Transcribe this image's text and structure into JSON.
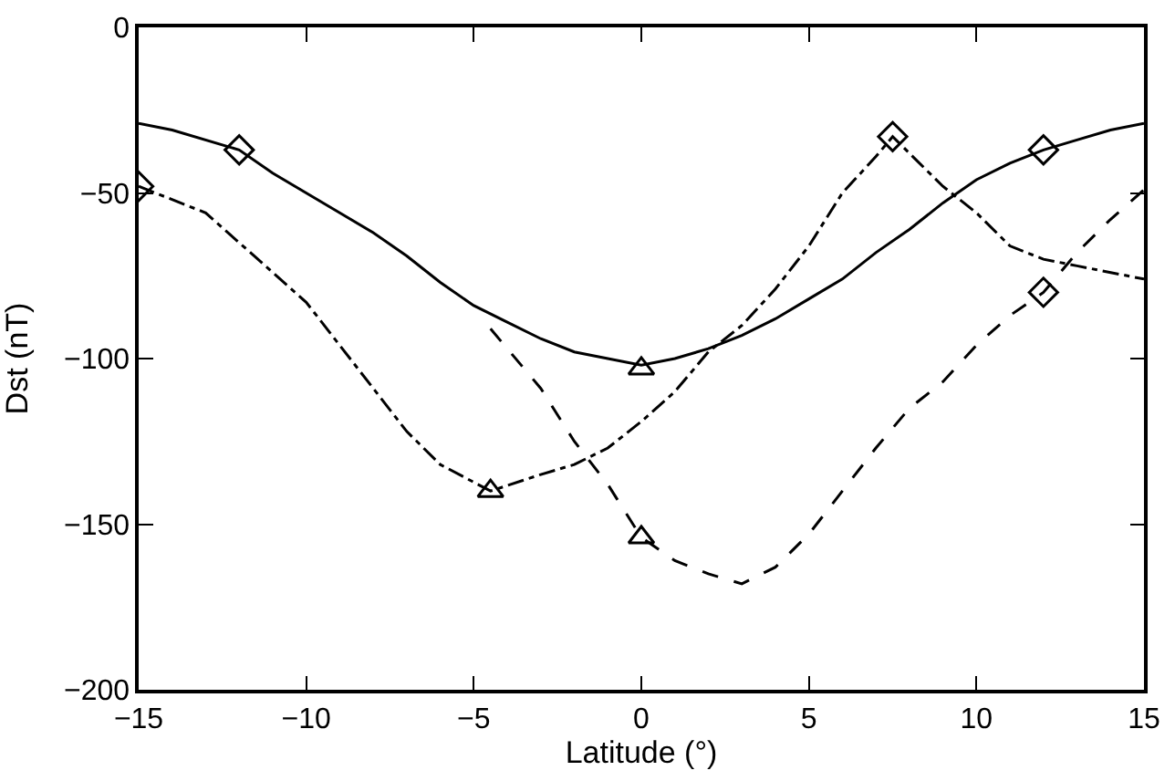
{
  "chart_data": {
    "type": "line",
    "xlabel": "Latitude (°)",
    "ylabel": "Dst (nT)",
    "xlim": [
      -15,
      15
    ],
    "ylim": [
      -200,
      0
    ],
    "xticks": [
      -15,
      -10,
      -5,
      0,
      5,
      10,
      15
    ],
    "yticks": [
      -200,
      -150,
      -100,
      -50,
      0
    ],
    "series": [
      {
        "line_style": "solid",
        "color": "#000000",
        "x": [
          -15,
          -14,
          -12,
          -11,
          -9,
          -8,
          -7,
          -6,
          -5,
          -4,
          -3,
          -2,
          -1,
          0,
          1,
          2,
          3,
          4,
          5,
          6,
          7,
          8,
          9,
          10,
          11,
          12,
          13,
          14,
          15
        ],
        "values": [
          -29,
          -31,
          -37,
          -44,
          -56,
          -62,
          -69,
          -77,
          -84,
          -89,
          -94,
          -98,
          -100,
          -102,
          -100,
          -97,
          -93,
          -88,
          -82,
          -76,
          -68,
          -61,
          -53,
          -46,
          -41,
          -37,
          -34,
          -31,
          -29
        ]
      },
      {
        "line_style": "dashdot",
        "color": "#000000",
        "x": [
          -15,
          -13,
          -12,
          -11,
          -10,
          -9,
          -8,
          -7,
          -6,
          -4.5,
          -3,
          -2,
          -1,
          0,
          1,
          2,
          3,
          4,
          5,
          6,
          7,
          7.5,
          8,
          9,
          10,
          11,
          12,
          13,
          15
        ],
        "values": [
          -48,
          -56,
          -65,
          -74,
          -83,
          -96,
          -109,
          -122,
          -132,
          -140,
          -135,
          -132,
          -127,
          -119,
          -110,
          -98,
          -90,
          -79,
          -66,
          -50,
          -39,
          -33,
          -38,
          -48,
          -56,
          -66,
          -70,
          -72,
          -76
        ]
      },
      {
        "line_style": "dashed",
        "color": "#000000",
        "x": [
          -4.5,
          -3,
          -2,
          -1,
          0,
          1,
          2,
          3,
          4,
          5,
          6,
          7,
          8,
          9,
          10,
          11,
          12,
          13,
          14,
          15
        ],
        "values": [
          -91,
          -109,
          -125,
          -138,
          -154,
          -161,
          -165,
          -168,
          -163,
          -153,
          -140,
          -127,
          -115,
          -107,
          -96,
          -87,
          -80,
          -68,
          -58,
          -49
        ]
      },
      {
        "type": "scatter",
        "marker": "diamond",
        "color": "#000000",
        "x": [
          -15,
          -12,
          7.5,
          12,
          12
        ],
        "values": [
          -48,
          -37,
          -33,
          -37,
          -80
        ]
      },
      {
        "type": "scatter",
        "marker": "triangle",
        "color": "#000000",
        "x": [
          -4.5,
          0,
          0
        ],
        "values": [
          -140,
          -103,
          -154
        ]
      }
    ]
  }
}
